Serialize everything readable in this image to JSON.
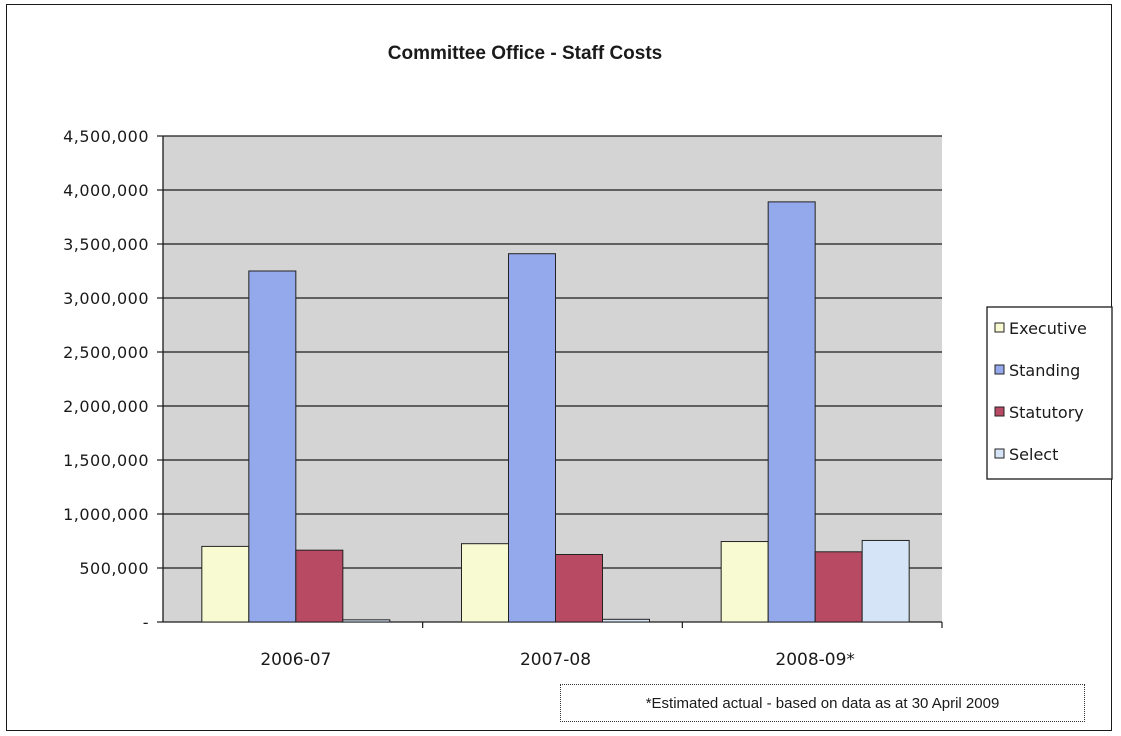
{
  "chart_data": {
    "type": "bar",
    "title": "Committee Office - Staff Costs",
    "xlabel": "",
    "ylabel": "",
    "categories": [
      "2006-07",
      "2007-08",
      "2008-09*"
    ],
    "series": [
      {
        "name": "Executive",
        "values": [
          700000,
          725000,
          745000
        ],
        "color": "#f8fbd2"
      },
      {
        "name": "Standing",
        "values": [
          3250000,
          3410000,
          3890000
        ],
        "color": "#94a8ec"
      },
      {
        "name": "Statutory",
        "values": [
          665000,
          625000,
          650000
        ],
        "color": "#b84a63"
      },
      {
        "name": "Select",
        "values": [
          20000,
          25000,
          755000
        ],
        "color": "#d6e4f8"
      }
    ],
    "ylim": [
      0,
      4500000
    ],
    "yticks": [
      0,
      500000,
      1000000,
      1500000,
      2000000,
      2500000,
      3000000,
      3500000,
      4000000,
      4500000
    ],
    "ytick_labels": [
      "-",
      "500,000",
      "1,000,000",
      "1,500,000",
      "2,000,000",
      "2,500,000",
      "3,000,000",
      "3,500,000",
      "4,000,000",
      "4,500,000"
    ],
    "grid": true,
    "legend_position": "right",
    "plot_background": "#d4d4d4"
  },
  "footnote": "*Estimated actual - based on data as at 30 April 2009"
}
